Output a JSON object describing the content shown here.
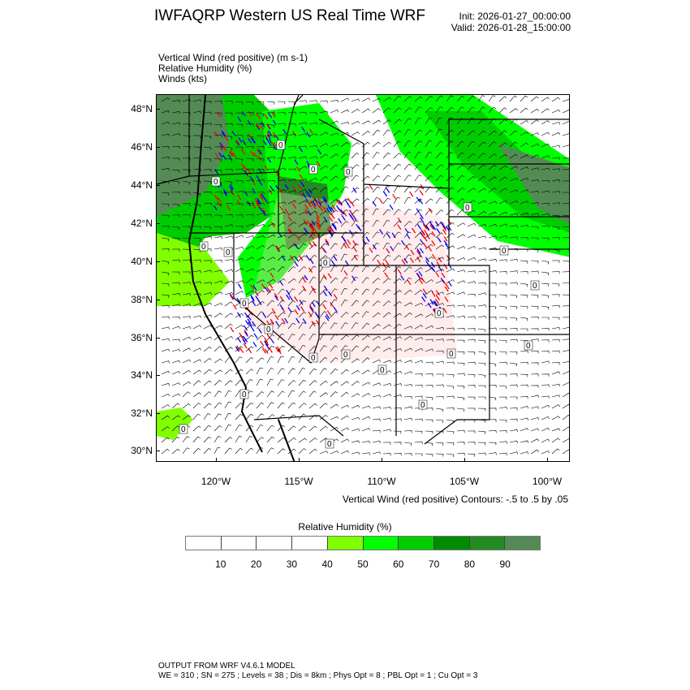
{
  "header": {
    "title": "IWFAQRP Western US Real Time WRF",
    "init": "Init: 2026-01-27_00:00:00",
    "valid": "Valid: 2026-01-28_15:00:00"
  },
  "fields": [
    "Vertical Wind (red positive)   (m s-1)",
    "Relative Humidity   (%)",
    "Winds   (kts)"
  ],
  "map": {
    "lat_labels": [
      "48°N",
      "46°N",
      "44°N",
      "42°N",
      "40°N",
      "38°N",
      "36°N",
      "34°N",
      "32°N",
      "30°N"
    ],
    "lon_labels": [
      "120°W",
      "115°W",
      "110°W",
      "105°W",
      "100°W"
    ],
    "contour_label": "0",
    "colors": {
      "updraft": "#ff0000",
      "downdraft": "#0000ff",
      "borders": "#000000"
    }
  },
  "contour_note": "Vertical Wind (red positive) Contours: -.5 to .5 by .05",
  "legend": {
    "title": "Relative Humidity  (%)",
    "labels": [
      "10",
      "20",
      "30",
      "40",
      "50",
      "60",
      "70",
      "80",
      "90"
    ],
    "colors": [
      "#ffffff",
      "#ffffff",
      "#ffffff",
      "#ffffff",
      "#80ff00",
      "#00ff00",
      "#00cd00",
      "#008b00",
      "#228b22",
      "#548b54"
    ]
  },
  "footer": {
    "line1": "OUTPUT FROM WRF V4.6.1 MODEL",
    "line2": "WE = 310 ; SN = 275 ; Levels = 38 ; Dis = 8km ; Phys Opt = 8 ; PBL Opt = 1 ; Cu Opt = 3"
  }
}
